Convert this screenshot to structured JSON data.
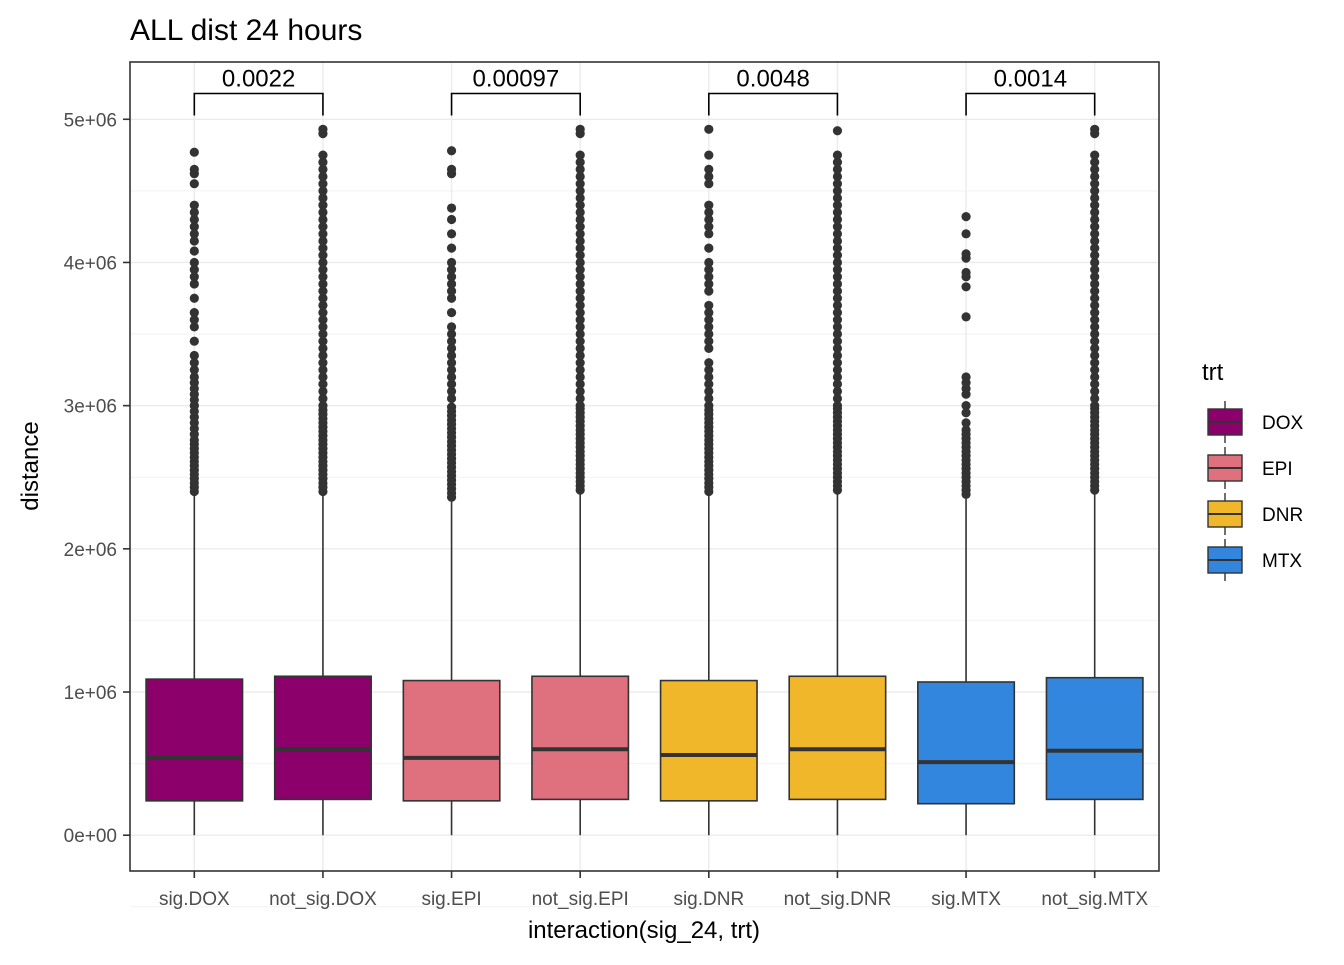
{
  "chart_data": {
    "type": "boxplot",
    "title": "ALL dist 24 hours",
    "xlabel": "interaction(sig_24, trt)",
    "ylabel": "distance",
    "ylim": [
      -250000,
      5400000
    ],
    "yticks": [
      {
        "value": 0,
        "label": "0e+00"
      },
      {
        "value": 1000000,
        "label": "1e+06"
      },
      {
        "value": 2000000,
        "label": "2e+06"
      },
      {
        "value": 3000000,
        "label": "3e+06"
      },
      {
        "value": 4000000,
        "label": "4e+06"
      },
      {
        "value": 5000000,
        "label": "5e+06"
      }
    ],
    "grid": true,
    "legend": {
      "title": "trt",
      "position": "right",
      "items": [
        {
          "label": "DOX",
          "color": "#8B006B"
        },
        {
          "label": "EPI",
          "color": "#DF707E"
        },
        {
          "label": "DNR",
          "color": "#F1B72B"
        },
        {
          "label": "MTX",
          "color": "#3386DD"
        }
      ]
    },
    "categories": [
      "sig.DOX",
      "not_sig.DOX",
      "sig.EPI",
      "not_sig.EPI",
      "sig.DNR",
      "not_sig.DNR",
      "sig.MTX",
      "not_sig.MTX"
    ],
    "boxes": [
      {
        "category": "sig.DOX",
        "trt": "DOX",
        "min": 0,
        "q1": 240000,
        "median": 540000,
        "q3": 1090000,
        "max": 2370000,
        "outliers": [
          2400000,
          2430000,
          2460000,
          2490000,
          2520000,
          2550000,
          2580000,
          2610000,
          2640000,
          2670000,
          2700000,
          2730000,
          2760000,
          2800000,
          2840000,
          2880000,
          2920000,
          2960000,
          3000000,
          3040000,
          3080000,
          3120000,
          3160000,
          3200000,
          3250000,
          3300000,
          3350000,
          3450000,
          3550000,
          3600000,
          3650000,
          3750000,
          3850000,
          3900000,
          3950000,
          4000000,
          4080000,
          4150000,
          4200000,
          4250000,
          4300000,
          4350000,
          4400000,
          4550000,
          4620000,
          4650000,
          4770000
        ]
      },
      {
        "category": "not_sig.DOX",
        "trt": "DOX",
        "min": 0,
        "q1": 250000,
        "median": 600000,
        "q3": 1110000,
        "max": 2370000,
        "outliers": [
          2400000,
          2430000,
          2460000,
          2490000,
          2520000,
          2550000,
          2580000,
          2610000,
          2640000,
          2670000,
          2700000,
          2730000,
          2760000,
          2790000,
          2820000,
          2850000,
          2880000,
          2910000,
          2940000,
          2970000,
          3000000,
          3050000,
          3100000,
          3150000,
          3200000,
          3250000,
          3300000,
          3350000,
          3400000,
          3450000,
          3500000,
          3550000,
          3600000,
          3650000,
          3700000,
          3750000,
          3800000,
          3850000,
          3900000,
          3950000,
          4000000,
          4050000,
          4100000,
          4150000,
          4200000,
          4250000,
          4300000,
          4350000,
          4400000,
          4450000,
          4500000,
          4550000,
          4600000,
          4650000,
          4700000,
          4750000,
          4900000,
          4930000
        ]
      },
      {
        "category": "sig.EPI",
        "trt": "EPI",
        "min": 0,
        "q1": 240000,
        "median": 540000,
        "q3": 1080000,
        "max": 2330000,
        "outliers": [
          2360000,
          2390000,
          2420000,
          2450000,
          2480000,
          2510000,
          2540000,
          2570000,
          2600000,
          2630000,
          2660000,
          2690000,
          2720000,
          2750000,
          2780000,
          2810000,
          2840000,
          2870000,
          2900000,
          2930000,
          2960000,
          2990000,
          3050000,
          3100000,
          3150000,
          3200000,
          3250000,
          3300000,
          3350000,
          3400000,
          3450000,
          3500000,
          3550000,
          3650000,
          3750000,
          3800000,
          3850000,
          3900000,
          3950000,
          4000000,
          4100000,
          4200000,
          4300000,
          4380000,
          4620000,
          4650000,
          4780000
        ]
      },
      {
        "category": "not_sig.EPI",
        "trt": "EPI",
        "min": 0,
        "q1": 250000,
        "median": 600000,
        "q3": 1110000,
        "max": 2380000,
        "outliers": [
          2410000,
          2440000,
          2470000,
          2500000,
          2530000,
          2560000,
          2590000,
          2620000,
          2650000,
          2680000,
          2710000,
          2740000,
          2770000,
          2800000,
          2830000,
          2860000,
          2890000,
          2920000,
          2950000,
          2980000,
          3000000,
          3050000,
          3100000,
          3150000,
          3200000,
          3250000,
          3300000,
          3350000,
          3400000,
          3450000,
          3500000,
          3550000,
          3600000,
          3650000,
          3700000,
          3750000,
          3800000,
          3850000,
          3900000,
          3950000,
          4000000,
          4050000,
          4100000,
          4150000,
          4200000,
          4250000,
          4300000,
          4350000,
          4400000,
          4450000,
          4500000,
          4550000,
          4600000,
          4650000,
          4700000,
          4750000,
          4900000,
          4930000
        ]
      },
      {
        "category": "sig.DNR",
        "trt": "DNR",
        "min": 0,
        "q1": 240000,
        "median": 560000,
        "q3": 1080000,
        "max": 2370000,
        "outliers": [
          2400000,
          2430000,
          2460000,
          2490000,
          2520000,
          2550000,
          2580000,
          2610000,
          2640000,
          2670000,
          2700000,
          2730000,
          2760000,
          2790000,
          2820000,
          2850000,
          2880000,
          2910000,
          2940000,
          2970000,
          3000000,
          3050000,
          3100000,
          3150000,
          3200000,
          3250000,
          3300000,
          3400000,
          3450000,
          3500000,
          3550000,
          3600000,
          3650000,
          3700000,
          3800000,
          3850000,
          3900000,
          3950000,
          4000000,
          4100000,
          4200000,
          4250000,
          4300000,
          4350000,
          4400000,
          4550000,
          4600000,
          4650000,
          4750000,
          4930000
        ]
      },
      {
        "category": "not_sig.DNR",
        "trt": "DNR",
        "min": 0,
        "q1": 250000,
        "median": 600000,
        "q3": 1110000,
        "max": 2380000,
        "outliers": [
          2410000,
          2440000,
          2470000,
          2500000,
          2530000,
          2560000,
          2590000,
          2620000,
          2650000,
          2680000,
          2710000,
          2740000,
          2770000,
          2800000,
          2830000,
          2860000,
          2890000,
          2920000,
          2950000,
          2980000,
          3000000,
          3050000,
          3100000,
          3150000,
          3200000,
          3250000,
          3300000,
          3350000,
          3400000,
          3450000,
          3500000,
          3550000,
          3600000,
          3650000,
          3700000,
          3750000,
          3800000,
          3850000,
          3900000,
          3950000,
          4000000,
          4050000,
          4100000,
          4150000,
          4200000,
          4250000,
          4300000,
          4350000,
          4400000,
          4450000,
          4500000,
          4550000,
          4600000,
          4650000,
          4700000,
          4750000,
          4920000
        ]
      },
      {
        "category": "sig.MTX",
        "trt": "MTX",
        "min": 0,
        "q1": 220000,
        "median": 510000,
        "q3": 1070000,
        "max": 2350000,
        "outliers": [
          2380000,
          2410000,
          2440000,
          2470000,
          2500000,
          2530000,
          2560000,
          2590000,
          2620000,
          2650000,
          2680000,
          2710000,
          2740000,
          2770000,
          2800000,
          2830000,
          2880000,
          2950000,
          3000000,
          3080000,
          3120000,
          3160000,
          3200000,
          3620000,
          3830000,
          3900000,
          3930000,
          4030000,
          4060000,
          4200000,
          4320000
        ]
      },
      {
        "category": "not_sig.MTX",
        "trt": "MTX",
        "min": 0,
        "q1": 250000,
        "median": 590000,
        "q3": 1100000,
        "max": 2380000,
        "outliers": [
          2410000,
          2440000,
          2470000,
          2500000,
          2530000,
          2560000,
          2590000,
          2620000,
          2650000,
          2680000,
          2710000,
          2740000,
          2770000,
          2800000,
          2830000,
          2860000,
          2890000,
          2920000,
          2950000,
          2980000,
          3000000,
          3050000,
          3100000,
          3150000,
          3200000,
          3250000,
          3300000,
          3350000,
          3400000,
          3450000,
          3500000,
          3550000,
          3600000,
          3650000,
          3700000,
          3750000,
          3800000,
          3850000,
          3900000,
          3950000,
          4000000,
          4050000,
          4100000,
          4150000,
          4200000,
          4250000,
          4300000,
          4350000,
          4400000,
          4450000,
          4500000,
          4550000,
          4600000,
          4650000,
          4700000,
          4750000,
          4900000,
          4930000
        ]
      }
    ],
    "annotations": [
      {
        "from": "sig.DOX",
        "to": "not_sig.DOX",
        "label": "0.0022",
        "y": 5180000
      },
      {
        "from": "sig.EPI",
        "to": "not_sig.EPI",
        "label": "0.00097",
        "y": 5180000
      },
      {
        "from": "sig.DNR",
        "to": "not_sig.DNR",
        "label": "0.0048",
        "y": 5180000
      },
      {
        "from": "sig.MTX",
        "to": "not_sig.MTX",
        "label": "0.0014",
        "y": 5180000
      }
    ]
  }
}
